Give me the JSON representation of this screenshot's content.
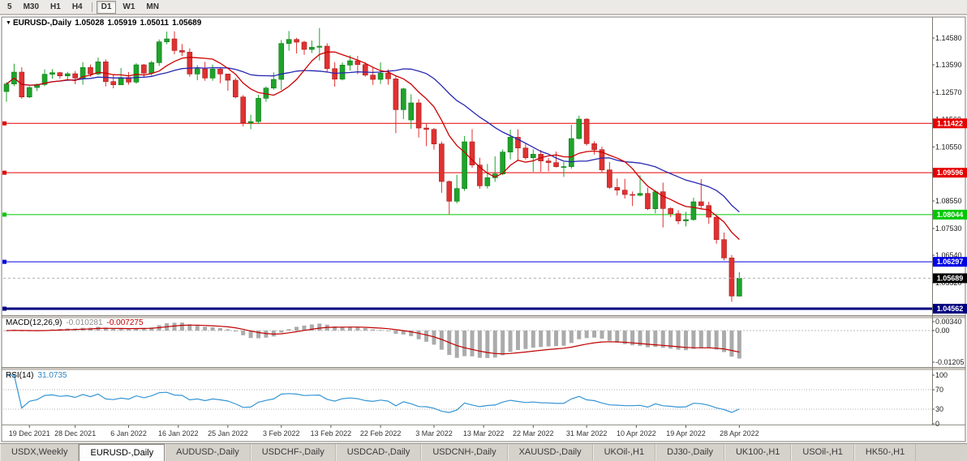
{
  "toolbar": {
    "timeframes": [
      "5",
      "M30",
      "H1",
      "H4",
      "D1",
      "W1",
      "MN"
    ],
    "active": "D1"
  },
  "chart_header": {
    "symbol": "EURUSD-,Daily",
    "open": "1.05028",
    "high": "1.05919",
    "low": "1.05011",
    "close": "1.05689"
  },
  "chart_data": {
    "type": "candlestick",
    "symbol": "EURUSD-,Daily",
    "price_axis_ticks": [
      "1.14580",
      "1.13590",
      "1.12570",
      "1.11560",
      "1.10550",
      "1.09540",
      "1.08550",
      "1.07530",
      "1.06540",
      "1.05520",
      "1.04510"
    ],
    "date_labels": [
      {
        "text": "19 Dec 2021",
        "i": 3
      },
      {
        "text": "28 Dec 2021",
        "i": 9
      },
      {
        "text": "6 Jan 2022",
        "i": 16
      },
      {
        "text": "16 Jan 2022",
        "i": 22.5
      },
      {
        "text": "25 Jan 2022",
        "i": 29
      },
      {
        "text": "3 Feb 2022",
        "i": 36
      },
      {
        "text": "13 Feb 2022",
        "i": 42.5
      },
      {
        "text": "22 Feb 2022",
        "i": 49
      },
      {
        "text": "3 Mar 2022",
        "i": 56
      },
      {
        "text": "13 Mar 2022",
        "i": 62.5
      },
      {
        "text": "22 Mar 2022",
        "i": 69
      },
      {
        "text": "31 Mar 2022",
        "i": 76
      },
      {
        "text": "10 Apr 2022",
        "i": 82.5
      },
      {
        "text": "19 Apr 2022",
        "i": 89
      },
      {
        "text": "28 Apr 2022",
        "i": 96
      }
    ],
    "hlines": [
      {
        "price": 1.11422,
        "label": "1.11422",
        "color": "#e60000",
        "width": 1
      },
      {
        "price": 1.09596,
        "label": "1.09596",
        "color": "#e60000",
        "width": 1
      },
      {
        "price": 1.08044,
        "label": "1.08044",
        "color": "#00c800",
        "width": 1
      },
      {
        "price": 1.06297,
        "label": "1.06297",
        "color": "#0000e6",
        "width": 1
      },
      {
        "price": 1.04562,
        "label": "1.04562",
        "color": "#000080",
        "width": 3
      }
    ],
    "bid": {
      "price": 1.05689,
      "label": "1.05689",
      "color": "#000000"
    },
    "moving_averages": [
      {
        "period": 20,
        "color": "#2727b3"
      },
      {
        "period": 8,
        "color": "#cc0000"
      }
    ],
    "candles": [
      [
        1.126,
        1.1295,
        1.1222,
        1.1288
      ],
      [
        1.1288,
        1.1363,
        1.128,
        1.1332
      ],
      [
        1.1332,
        1.135,
        1.1233,
        1.124
      ],
      [
        1.124,
        1.128,
        1.1236,
        1.1275
      ],
      [
        1.1275,
        1.129,
        1.1262,
        1.1286
      ],
      [
        1.1286,
        1.1342,
        1.128,
        1.1324
      ],
      [
        1.1324,
        1.1343,
        1.1308,
        1.133
      ],
      [
        1.133,
        1.1333,
        1.1308,
        1.1318
      ],
      [
        1.1318,
        1.1333,
        1.1304,
        1.1326
      ],
      [
        1.1326,
        1.1336,
        1.1287,
        1.131
      ],
      [
        1.131,
        1.1369,
        1.1285,
        1.1349
      ],
      [
        1.1349,
        1.136,
        1.1315,
        1.1325
      ],
      [
        1.1325,
        1.1386,
        1.1321,
        1.137
      ],
      [
        1.137,
        1.1379,
        1.1279,
        1.1297
      ],
      [
        1.1297,
        1.1324,
        1.1272,
        1.1285
      ],
      [
        1.1285,
        1.1347,
        1.1284,
        1.1312
      ],
      [
        1.1312,
        1.1332,
        1.1285,
        1.1295
      ],
      [
        1.1295,
        1.1365,
        1.1289,
        1.1359
      ],
      [
        1.1359,
        1.1362,
        1.1313,
        1.1328
      ],
      [
        1.1328,
        1.1374,
        1.1314,
        1.1367
      ],
      [
        1.1367,
        1.1453,
        1.1355,
        1.1444
      ],
      [
        1.1444,
        1.1482,
        1.1435,
        1.1455
      ],
      [
        1.1455,
        1.1483,
        1.1398,
        1.1412
      ],
      [
        1.1412,
        1.1436,
        1.1392,
        1.1406
      ],
      [
        1.1406,
        1.142,
        1.1315,
        1.1325
      ],
      [
        1.1325,
        1.1358,
        1.1302,
        1.1344
      ],
      [
        1.1344,
        1.137,
        1.13,
        1.131
      ],
      [
        1.131,
        1.136,
        1.13,
        1.1343
      ],
      [
        1.1343,
        1.1349,
        1.1291,
        1.1325
      ],
      [
        1.1325,
        1.1325,
        1.1263,
        1.1302
      ],
      [
        1.1302,
        1.131,
        1.1235,
        1.124
      ],
      [
        1.124,
        1.1247,
        1.1131,
        1.1144
      ],
      [
        1.1144,
        1.1174,
        1.1121,
        1.1149
      ],
      [
        1.1149,
        1.1248,
        1.1141,
        1.1235
      ],
      [
        1.1235,
        1.1279,
        1.1222,
        1.1273
      ],
      [
        1.1273,
        1.1331,
        1.1267,
        1.1305
      ],
      [
        1.1305,
        1.1451,
        1.1266,
        1.1438
      ],
      [
        1.1438,
        1.1484,
        1.1411,
        1.1453
      ],
      [
        1.1453,
        1.1459,
        1.1401,
        1.1443
      ],
      [
        1.1443,
        1.1448,
        1.1396,
        1.1416
      ],
      [
        1.1416,
        1.1449,
        1.1403,
        1.1424
      ],
      [
        1.1424,
        1.1495,
        1.1375,
        1.1428
      ],
      [
        1.1428,
        1.1439,
        1.133,
        1.1345
      ],
      [
        1.1345,
        1.1369,
        1.1278,
        1.1306
      ],
      [
        1.1306,
        1.1368,
        1.1301,
        1.1358
      ],
      [
        1.1358,
        1.1394,
        1.1338,
        1.1374
      ],
      [
        1.1374,
        1.1392,
        1.1324,
        1.136
      ],
      [
        1.136,
        1.1369,
        1.1315,
        1.1321
      ],
      [
        1.1321,
        1.1349,
        1.1285,
        1.1305
      ],
      [
        1.1305,
        1.1368,
        1.1288,
        1.1328
      ],
      [
        1.1328,
        1.1342,
        1.1285,
        1.1307
      ],
      [
        1.1307,
        1.1316,
        1.1106,
        1.1193
      ],
      [
        1.1193,
        1.1274,
        1.1158,
        1.127
      ],
      [
        1.1155,
        1.125,
        1.1122,
        1.1218
      ],
      [
        1.1218,
        1.1232,
        1.109,
        1.1125
      ],
      [
        1.1125,
        1.1143,
        1.1058,
        1.112
      ],
      [
        1.112,
        1.1125,
        1.1045,
        1.1066
      ],
      [
        1.1066,
        1.1075,
        1.0885,
        1.0927
      ],
      [
        1.0927,
        1.0931,
        1.0806,
        1.0854
      ],
      [
        1.0854,
        1.0952,
        1.0846,
        1.0901
      ],
      [
        1.0901,
        1.1095,
        1.0892,
        1.1074
      ],
      [
        1.1074,
        1.1121,
        1.0978,
        1.0988
      ],
      [
        1.0988,
        1.1015,
        1.09,
        1.0911
      ],
      [
        1.0911,
        1.0992,
        1.0901,
        1.0941
      ],
      [
        1.0941,
        1.102,
        1.0926,
        1.0955
      ],
      [
        1.0955,
        1.1046,
        1.095,
        1.1036
      ],
      [
        1.1036,
        1.1119,
        1.1009,
        1.1091
      ],
      [
        1.1091,
        1.112,
        1.1003,
        1.1051
      ],
      [
        1.1051,
        1.1069,
        1.1008,
        1.1015
      ],
      [
        1.1015,
        1.1046,
        1.0963,
        1.1028
      ],
      [
        1.1028,
        1.1044,
        1.0963,
        1.1003
      ],
      [
        1.1003,
        1.1014,
        1.0965,
        1.0997
      ],
      [
        1.0997,
        1.1038,
        1.0979,
        1.0982
      ],
      [
        1.0982,
        1.0999,
        1.0944,
        1.0982
      ],
      [
        1.0982,
        1.1137,
        1.0975,
        1.1086
      ],
      [
        1.1086,
        1.1171,
        1.1083,
        1.1158
      ],
      [
        1.1158,
        1.1161,
        1.106,
        1.1067
      ],
      [
        1.1067,
        1.1076,
        1.1027,
        1.1045
      ],
      [
        1.1045,
        1.1056,
        1.096,
        1.097
      ],
      [
        1.097,
        1.0999,
        1.09,
        1.0905
      ],
      [
        1.0905,
        1.0938,
        1.0875,
        1.0895
      ],
      [
        1.0895,
        1.0937,
        1.0864,
        1.0879
      ],
      [
        1.0879,
        1.089,
        1.0836,
        1.0876
      ],
      [
        1.0876,
        1.095,
        1.0872,
        1.0883
      ],
      [
        1.0883,
        1.0904,
        1.0821,
        1.0826
      ],
      [
        1.0826,
        1.0896,
        1.0809,
        1.0889
      ],
      [
        1.0889,
        1.0923,
        1.0757,
        1.0827
      ],
      [
        1.0827,
        1.0832,
        1.0795,
        1.0808
      ],
      [
        1.0808,
        1.0821,
        1.0769,
        1.0781
      ],
      [
        1.0781,
        1.0815,
        1.0761,
        1.0786
      ],
      [
        1.0786,
        1.0867,
        1.0782,
        1.0852
      ],
      [
        1.0852,
        1.0936,
        1.0824,
        1.0838
      ],
      [
        1.0838,
        1.0852,
        1.077,
        1.0795
      ],
      [
        1.0795,
        1.0802,
        1.0697,
        1.0712
      ],
      [
        1.0712,
        1.0738,
        1.0635,
        1.0644
      ],
      [
        1.0644,
        1.0655,
        1.0482,
        1.0503
      ],
      [
        1.05028,
        1.05919,
        1.05011,
        1.05689
      ]
    ]
  },
  "macd": {
    "title": "MACD(12,26,9)",
    "main_value": "-0.010281",
    "signal_value": "-0.007275",
    "params": {
      "fast": 12,
      "slow": 26,
      "signal": 9
    },
    "axis_ticks": [
      {
        "label": "0.00340",
        "value": 0.0034
      },
      {
        "label": "0.00",
        "value": 0
      },
      {
        "label": "-0.01205",
        "value": -0.01205
      }
    ],
    "histogram_color": "#ababab",
    "signal_color": "#c00000"
  },
  "rsi": {
    "title": "RSI(14)",
    "period": 14,
    "value": "31.0735",
    "axis_ticks": [
      {
        "label": "100",
        "value": 100
      },
      {
        "label": "70",
        "value": 70
      },
      {
        "label": "30",
        "value": 30
      },
      {
        "label": "0",
        "value": 0
      }
    ],
    "levels": [
      70,
      30
    ],
    "line_color": "#3595d4",
    "level_color": "#b2b2b2"
  },
  "tabs": [
    "USDX,Weekly",
    "EURUSD-,Daily",
    "AUDUSD-,Daily",
    "USDCHF-,Daily",
    "USDCAD-,Daily",
    "USDCNH-,Daily",
    "XAUUSD-,Daily",
    "UKOil-,H1",
    "DJ30-,Daily",
    "UK100-,H1",
    "USOil-,H1",
    "HK50-,H1"
  ],
  "active_tab": "EURUSD-,Daily",
  "colors": {
    "up": "#1fa32b",
    "up_stroke": "#0c7a16",
    "down": "#e03131",
    "down_stroke": "#a81d1d",
    "axis_text": "#1a1a1a",
    "date_text": "#333333",
    "frame": "#7d7a74",
    "bid_line": "#b0b0b0"
  }
}
